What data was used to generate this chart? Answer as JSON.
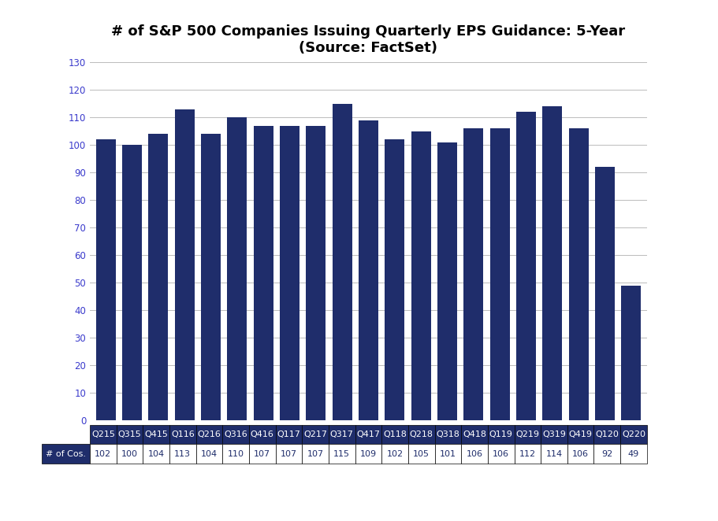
{
  "title_line1": "# of S&P 500 Companies Issuing Quarterly EPS Guidance: 5-Year",
  "title_line2": "(Source: FactSet)",
  "categories": [
    "Q215",
    "Q315",
    "Q415",
    "Q116",
    "Q216",
    "Q316",
    "Q416",
    "Q117",
    "Q217",
    "Q317",
    "Q417",
    "Q118",
    "Q218",
    "Q318",
    "Q418",
    "Q119",
    "Q219",
    "Q319",
    "Q419",
    "Q120",
    "Q220"
  ],
  "values": [
    102,
    100,
    104,
    113,
    104,
    110,
    107,
    107,
    107,
    115,
    109,
    102,
    105,
    101,
    106,
    106,
    112,
    114,
    106,
    92,
    49
  ],
  "bar_color": "#1F2D6B",
  "ylim": [
    0,
    130
  ],
  "yticks": [
    0,
    10,
    20,
    30,
    40,
    50,
    60,
    70,
    80,
    90,
    100,
    110,
    120,
    130
  ],
  "legend_label": "# of Cos.",
  "table_header_bg": "#1F2D6B",
  "table_header_fg": "#FFFFFF",
  "table_value_bg": "#FFFFFF",
  "table_value_fg": "#1F2D6B",
  "table_row_label_bg": "#1F2D6B",
  "table_row_label_fg": "#FFFFFF",
  "background_color": "#FFFFFF",
  "grid_color": "#BBBBBB",
  "title_fontsize": 13,
  "tick_fontsize": 8.5,
  "table_fontsize": 8
}
